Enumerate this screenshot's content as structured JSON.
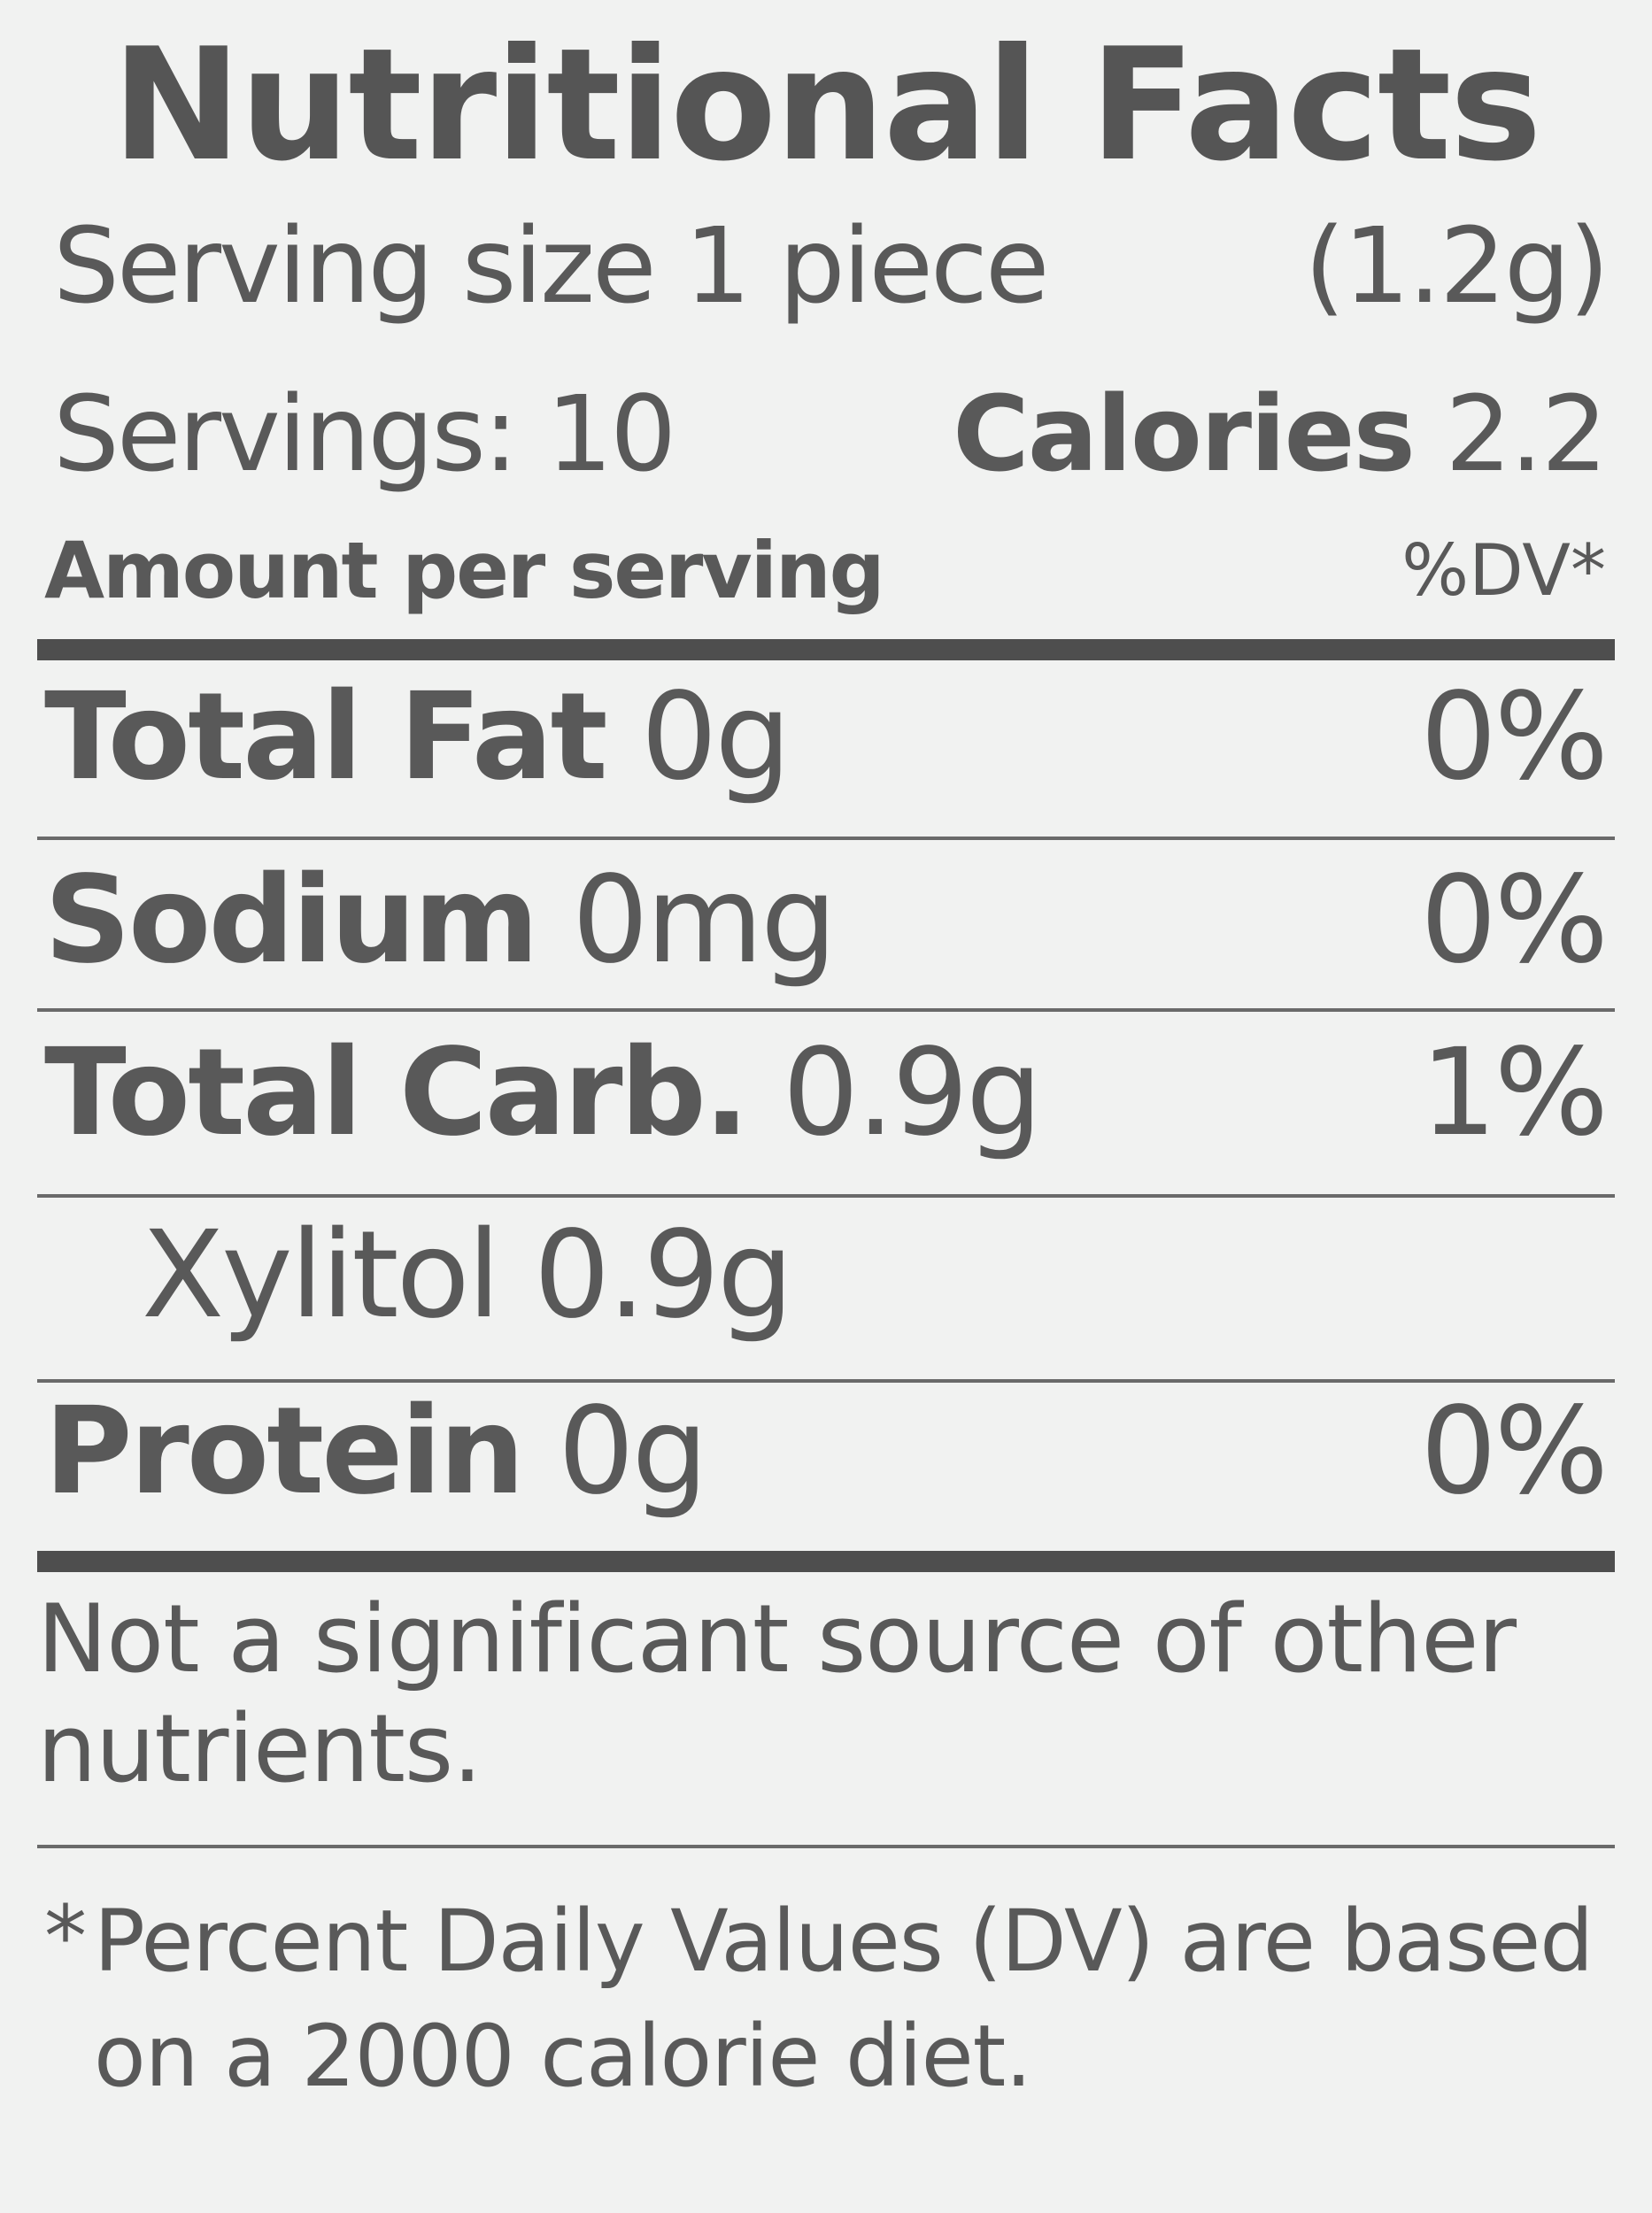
{
  "label": {
    "title": "Nutritional Facts",
    "serving_size": "Serving size 1 piece",
    "serving_weight": "(1.2g)",
    "servings": "Servings: 10",
    "calories_label": "Calories",
    "calories_value": "2.2",
    "amount_header": "Amount per serving",
    "dv_header": "%DV*",
    "rows": [
      {
        "name": "Total Fat",
        "amount": "0g",
        "dv": "0%"
      },
      {
        "name": "Sodium",
        "amount": "0mg",
        "dv": "0%"
      },
      {
        "name": "Total Carb.",
        "amount": "0.9g",
        "dv": "1%"
      },
      {
        "name": "Xylitol",
        "amount": "0.9g",
        "dv": ""
      },
      {
        "name": "Protein",
        "amount": "0g",
        "dv": "0%"
      }
    ],
    "note": "Not a significant source of other nutrients.",
    "footnote_star": "*",
    "footnote": "Percent Daily Values (DV) are based on a 2000 calorie diet."
  }
}
